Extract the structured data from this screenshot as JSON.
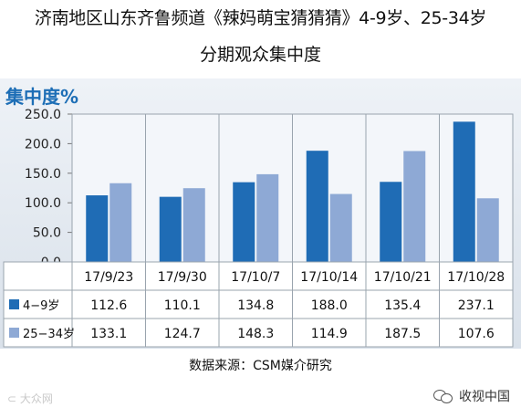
{
  "title_line1": "济南地区山东齐鲁频道《辣妈萌宝猜猜猜》4-9岁、25-34岁",
  "title_line2": "分期观众集中度",
  "source": "数据来源：CSM媒介研究",
  "watermark_left": "大众网",
  "watermark_right": "收视中国",
  "colors": {
    "series1": "#1f6cb5",
    "series2": "#8ea9d5",
    "accent": "#1d6eb6"
  },
  "chart_data": {
    "type": "bar",
    "ylabel": "集中度%",
    "ylim": [
      0,
      250
    ],
    "yticks": [
      "0.0",
      "50.0",
      "100.0",
      "150.0",
      "200.0",
      "250.0"
    ],
    "grid": false,
    "categories": [
      "17/9/23",
      "17/9/30",
      "17/10/7",
      "17/10/14",
      "17/10/21",
      "17/10/28"
    ],
    "series": [
      {
        "name": "4−9岁",
        "values": [
          112.6,
          110.1,
          134.8,
          188.0,
          135.4,
          237.1
        ],
        "labels": [
          "112.6",
          "110.1",
          "134.8",
          "188.0",
          "135.4",
          "237.1"
        ]
      },
      {
        "name": "25−34岁",
        "values": [
          133.1,
          124.7,
          148.3,
          114.9,
          187.5,
          107.6
        ],
        "labels": [
          "133.1",
          "124.7",
          "148.3",
          "114.9",
          "187.5",
          "107.6"
        ]
      }
    ]
  }
}
